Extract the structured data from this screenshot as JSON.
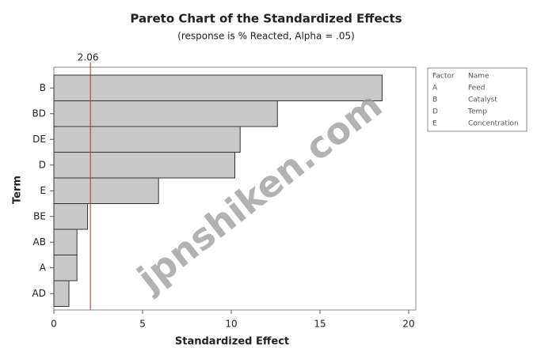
{
  "chart_data": {
    "type": "bar",
    "orientation": "horizontal",
    "title": "Pareto Chart of the Standardized Effects",
    "subtitle": "(response is % Reacted, Alpha = .05)",
    "xlabel": "Standardized Effect",
    "ylabel": "Term",
    "categories": [
      "B",
      "BD",
      "DE",
      "D",
      "E",
      "BE",
      "AB",
      "A",
      "AD"
    ],
    "values": [
      18.5,
      12.6,
      10.5,
      10.2,
      5.9,
      1.9,
      1.3,
      1.3,
      0.85
    ],
    "color": "#c8c8c8",
    "xlim": [
      0,
      20.4
    ],
    "xticks": [
      0,
      5,
      10,
      15,
      20
    ],
    "reference_line": {
      "value": 2.06,
      "color": "#b03030"
    },
    "legend": {
      "headers": [
        "Factor",
        "Name"
      ],
      "rows": [
        [
          "A",
          "Feed"
        ],
        [
          "B",
          "Catalyst"
        ],
        [
          "D",
          "Temp"
        ],
        [
          "E",
          "Concentration"
        ]
      ]
    },
    "watermark": "jpnshiken.com"
  }
}
